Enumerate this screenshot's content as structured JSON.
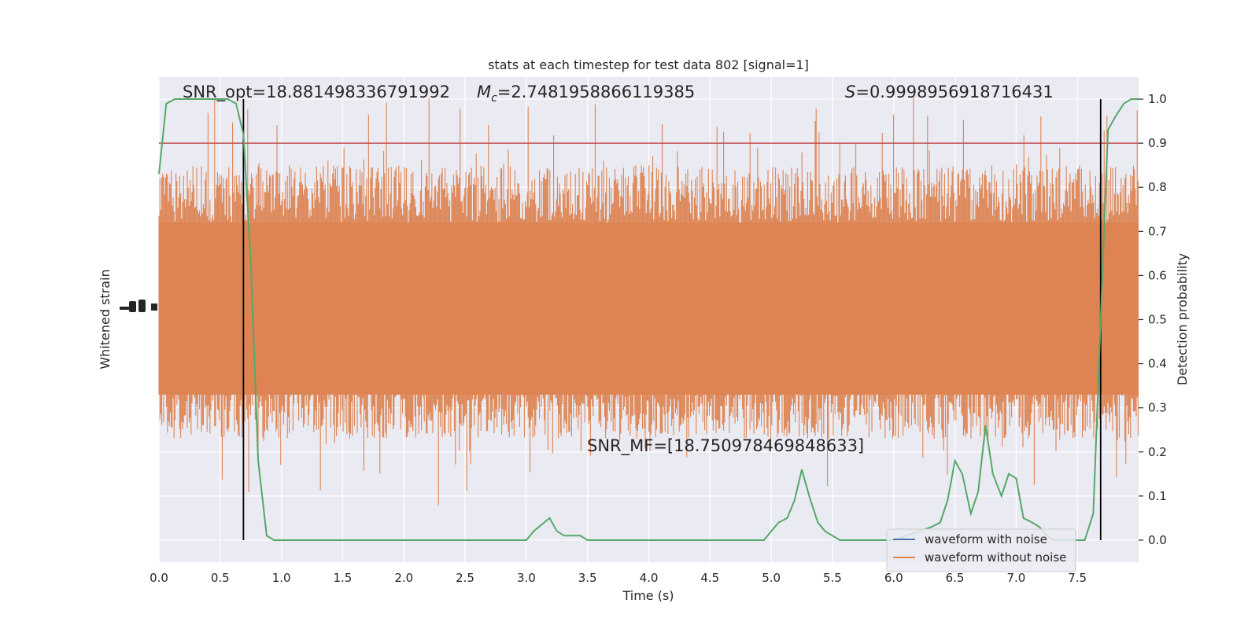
{
  "chart_data": {
    "type": "line",
    "title": "stats at each timestep for test data 802 [signal=1]",
    "xlabel": "Time (s)",
    "ylabel_left": "Whitened strain",
    "ylabel_right": "Detection probability",
    "xlim": [
      0.0,
      8.0
    ],
    "ylim_right": [
      -0.05,
      1.05
    ],
    "x_ticks": [
      "0.0",
      "0.5",
      "1.0",
      "1.5",
      "2.0",
      "2.5",
      "3.0",
      "3.5",
      "4.0",
      "4.5",
      "5.0",
      "5.5",
      "6.0",
      "6.5",
      "7.0",
      "7.5"
    ],
    "y_right_ticks": [
      "0.0",
      "0.1",
      "0.2",
      "0.3",
      "0.4",
      "0.5",
      "0.6",
      "0.7",
      "0.8",
      "0.9",
      "1.0"
    ],
    "grid": true,
    "annotations": {
      "snr_opt": "SNR_opt=18.881498336791992",
      "mc_symbol": "M",
      "mc_sub": "c",
      "mc_value": "=2.7481958866119385",
      "s_symbol": "S",
      "s_value": "=0.9998956918716431",
      "snr_mf": "SNR_MF=[18.750978469848633]"
    },
    "threshold": 0.9,
    "vlines_x": [
      0.69,
      7.69
    ],
    "legend": {
      "placement": "lower-right",
      "entries": [
        "waveform with noise",
        "waveform without noise"
      ]
    },
    "series": [
      {
        "name": "waveform with noise",
        "color": "#4c72b0"
      },
      {
        "name": "waveform without noise",
        "color": "#dd8452",
        "note_shape": "dense noise band"
      },
      {
        "name": "detection probability",
        "color": "#55a868",
        "x": [
          0.0,
          0.06,
          0.13,
          0.19,
          0.25,
          0.31,
          0.38,
          0.44,
          0.5,
          0.56,
          0.63,
          0.69,
          0.75,
          0.81,
          0.88,
          0.94,
          1.0,
          1.25,
          1.5,
          1.75,
          2.0,
          2.25,
          2.5,
          2.75,
          3.0,
          3.06,
          3.19,
          3.25,
          3.31,
          3.38,
          3.44,
          3.5,
          3.75,
          4.0,
          4.25,
          4.5,
          4.75,
          4.94,
          5.0,
          5.06,
          5.13,
          5.19,
          5.25,
          5.31,
          5.38,
          5.44,
          5.5,
          5.56,
          5.63,
          6.0,
          6.31,
          6.38,
          6.44,
          6.5,
          6.56,
          6.63,
          6.69,
          6.75,
          6.81,
          6.88,
          6.94,
          7.0,
          7.06,
          7.13,
          7.19,
          7.25,
          7.31,
          7.44,
          7.56,
          7.63,
          7.69,
          7.75,
          7.81,
          7.88,
          7.94,
          8.0
        ],
        "y": [
          0.83,
          0.99,
          1.0,
          1.0,
          1.0,
          1.0,
          1.0,
          1.0,
          1.0,
          1.0,
          0.99,
          0.92,
          0.63,
          0.18,
          0.01,
          0.0,
          0.0,
          0.0,
          0.0,
          0.0,
          0.0,
          0.0,
          0.0,
          0.0,
          0.0,
          0.02,
          0.05,
          0.02,
          0.01,
          0.01,
          0.01,
          0.0,
          0.0,
          0.0,
          0.0,
          0.0,
          0.0,
          0.0,
          0.02,
          0.04,
          0.05,
          0.09,
          0.16,
          0.1,
          0.04,
          0.02,
          0.01,
          0.0,
          0.0,
          0.0,
          0.03,
          0.04,
          0.09,
          0.18,
          0.15,
          0.06,
          0.11,
          0.26,
          0.15,
          0.1,
          0.15,
          0.14,
          0.05,
          0.04,
          0.03,
          0.01,
          0.0,
          0.0,
          0.0,
          0.06,
          0.5,
          0.93,
          0.96,
          0.99,
          1.0,
          1.0
        ]
      }
    ]
  }
}
